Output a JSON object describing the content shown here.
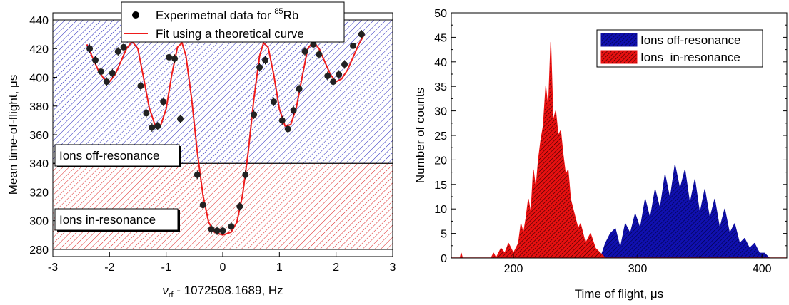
{
  "chart_data": [
    {
      "type": "scatter",
      "xlabel_italic": "ν",
      "xlabel_sub": "rf",
      "xlabel_rest": " - 1072508.1689, Hz",
      "ylabel": "Mean time-of-flight, μs",
      "xlim": [
        -3,
        3
      ],
      "ylim": [
        275,
        445
      ],
      "xticks": [
        "-3",
        "-2",
        "-1",
        "0",
        "1",
        "2",
        "3"
      ],
      "yticks": [
        "280",
        "300",
        "320",
        "340",
        "360",
        "380",
        "400",
        "420",
        "440"
      ],
      "legend": {
        "placement": "top",
        "scatter_label": "Experimetnal data for ",
        "scatter_sup": "85",
        "scatter_tail": "Rb",
        "line_label": "Fit using a theoretical curve"
      },
      "bands": [
        {
          "label": "Ions off-resonance",
          "y_range": [
            340,
            440
          ],
          "color": "#1a1acc"
        },
        {
          "label": "Ions in-resonance",
          "y_range": [
            280,
            340
          ],
          "color": "#dd1111"
        }
      ],
      "series": [
        {
          "kind": "scatter",
          "color": "#222222",
          "errorbar": 3,
          "points": [
            [
              -2.35,
              420
            ],
            [
              -2.25,
              412
            ],
            [
              -2.15,
              404
            ],
            [
              -2.05,
              397
            ],
            [
              -1.95,
              403
            ],
            [
              -1.85,
              418
            ],
            [
              -1.75,
              421
            ],
            [
              -1.6,
              429
            ],
            [
              -1.45,
              394
            ],
            [
              -1.35,
              375
            ],
            [
              -1.25,
              365
            ],
            [
              -1.15,
              366
            ],
            [
              -1.05,
              383
            ],
            [
              -0.95,
              414
            ],
            [
              -0.85,
              413
            ],
            [
              -0.75,
              371
            ],
            [
              -0.45,
              332
            ],
            [
              -0.35,
              311
            ],
            [
              -0.2,
              294
            ],
            [
              -0.1,
              293
            ],
            [
              0.0,
              293
            ],
            [
              0.15,
              296
            ],
            [
              0.3,
              310
            ],
            [
              0.4,
              332
            ],
            [
              0.55,
              374
            ],
            [
              0.65,
              407
            ],
            [
              0.75,
              412
            ],
            [
              0.9,
              383
            ],
            [
              1.05,
              370
            ],
            [
              1.15,
              364
            ],
            [
              1.25,
              377
            ],
            [
              1.35,
              392
            ],
            [
              1.45,
              418
            ],
            [
              1.6,
              423
            ],
            [
              1.7,
              416
            ],
            [
              1.85,
              401
            ],
            [
              1.95,
              397
            ],
            [
              2.05,
              402
            ],
            [
              2.15,
              409
            ],
            [
              2.3,
              422
            ],
            [
              2.45,
              430
            ]
          ]
        },
        {
          "kind": "line",
          "color": "#ee1c1c",
          "points": [
            [
              -2.4,
              423
            ],
            [
              -2.3,
              414
            ],
            [
              -2.2,
              405
            ],
            [
              -2.1,
              399
            ],
            [
              -2.0,
              397
            ],
            [
              -1.9,
              402
            ],
            [
              -1.8,
              411
            ],
            [
              -1.7,
              420
            ],
            [
              -1.6,
              425
            ],
            [
              -1.5,
              420
            ],
            [
              -1.4,
              400
            ],
            [
              -1.3,
              379
            ],
            [
              -1.2,
              367
            ],
            [
              -1.1,
              366
            ],
            [
              -1.0,
              378
            ],
            [
              -0.9,
              402
            ],
            [
              -0.8,
              421
            ],
            [
              -0.72,
              424
            ],
            [
              -0.65,
              415
            ],
            [
              -0.55,
              385
            ],
            [
              -0.45,
              348
            ],
            [
              -0.35,
              318
            ],
            [
              -0.25,
              299
            ],
            [
              -0.15,
              292
            ],
            [
              0.0,
              290
            ],
            [
              0.15,
              292
            ],
            [
              0.25,
              299
            ],
            [
              0.35,
              318
            ],
            [
              0.45,
              348
            ],
            [
              0.55,
              385
            ],
            [
              0.65,
              415
            ],
            [
              0.72,
              424
            ],
            [
              0.8,
              421
            ],
            [
              0.9,
              402
            ],
            [
              1.0,
              378
            ],
            [
              1.1,
              366
            ],
            [
              1.2,
              367
            ],
            [
              1.3,
              379
            ],
            [
              1.4,
              400
            ],
            [
              1.5,
              420
            ],
            [
              1.6,
              425
            ],
            [
              1.7,
              420
            ],
            [
              1.8,
              411
            ],
            [
              1.9,
              402
            ],
            [
              2.0,
              397
            ],
            [
              2.1,
              399
            ],
            [
              2.2,
              405
            ],
            [
              2.3,
              414
            ],
            [
              2.4,
              423
            ],
            [
              2.5,
              430
            ]
          ]
        }
      ]
    },
    {
      "type": "area",
      "xlabel": "Time of flight, μs",
      "ylabel": "Number of counts",
      "xlim": [
        150,
        420
      ],
      "ylim": [
        0,
        50
      ],
      "xticks": [
        "200",
        "300",
        "400"
      ],
      "yticks": [
        "0",
        "5",
        "10",
        "15",
        "20",
        "25",
        "30",
        "35",
        "40",
        "45",
        "50"
      ],
      "legend_placement": "top-right",
      "series": [
        {
          "name": "Ions off-resonance",
          "color": "#0d0d9e",
          "points": [
            [
              270,
              0
            ],
            [
              274,
              3
            ],
            [
              278,
              5
            ],
            [
              282,
              6
            ],
            [
              286,
              2
            ],
            [
              290,
              7
            ],
            [
              294,
              5
            ],
            [
              298,
              9
            ],
            [
              302,
              6
            ],
            [
              306,
              12
            ],
            [
              310,
              8
            ],
            [
              314,
              14
            ],
            [
              318,
              10
            ],
            [
              322,
              17
            ],
            [
              326,
              12
            ],
            [
              330,
              19
            ],
            [
              334,
              14
            ],
            [
              338,
              18
            ],
            [
              342,
              11
            ],
            [
              346,
              16
            ],
            [
              350,
              9
            ],
            [
              354,
              14
            ],
            [
              358,
              8
            ],
            [
              362,
              12
            ],
            [
              366,
              6
            ],
            [
              370,
              10
            ],
            [
              374,
              5
            ],
            [
              378,
              7
            ],
            [
              382,
              3
            ],
            [
              386,
              4
            ],
            [
              390,
              2
            ],
            [
              394,
              3
            ],
            [
              398,
              1
            ],
            [
              402,
              1
            ],
            [
              406,
              0
            ]
          ]
        },
        {
          "name": "Ions  in-resonance",
          "color": "#e81010",
          "points": [
            [
              157,
              0
            ],
            [
              158,
              1
            ],
            [
              159,
              0
            ],
            [
              182,
              0
            ],
            [
              184,
              1
            ],
            [
              186,
              0
            ],
            [
              190,
              2
            ],
            [
              193,
              1
            ],
            [
              196,
              3
            ],
            [
              200,
              1
            ],
            [
              204,
              3
            ],
            [
              206,
              7
            ],
            [
              208,
              5
            ],
            [
              210,
              8
            ],
            [
              212,
              12
            ],
            [
              214,
              9
            ],
            [
              216,
              18
            ],
            [
              218,
              14
            ],
            [
              220,
              20
            ],
            [
              222,
              24
            ],
            [
              224,
              27
            ],
            [
              226,
              35
            ],
            [
              228,
              30
            ],
            [
              230,
              44
            ],
            [
              232,
              28
            ],
            [
              234,
              30
            ],
            [
              236,
              25
            ],
            [
              238,
              26
            ],
            [
              240,
              21
            ],
            [
              242,
              17
            ],
            [
              244,
              18
            ],
            [
              246,
              12
            ],
            [
              248,
              10
            ],
            [
              250,
              8
            ],
            [
              252,
              6
            ],
            [
              254,
              7
            ],
            [
              256,
              5
            ],
            [
              258,
              3
            ],
            [
              262,
              5
            ],
            [
              266,
              2
            ],
            [
              270,
              1
            ],
            [
              274,
              0
            ]
          ]
        }
      ]
    }
  ]
}
